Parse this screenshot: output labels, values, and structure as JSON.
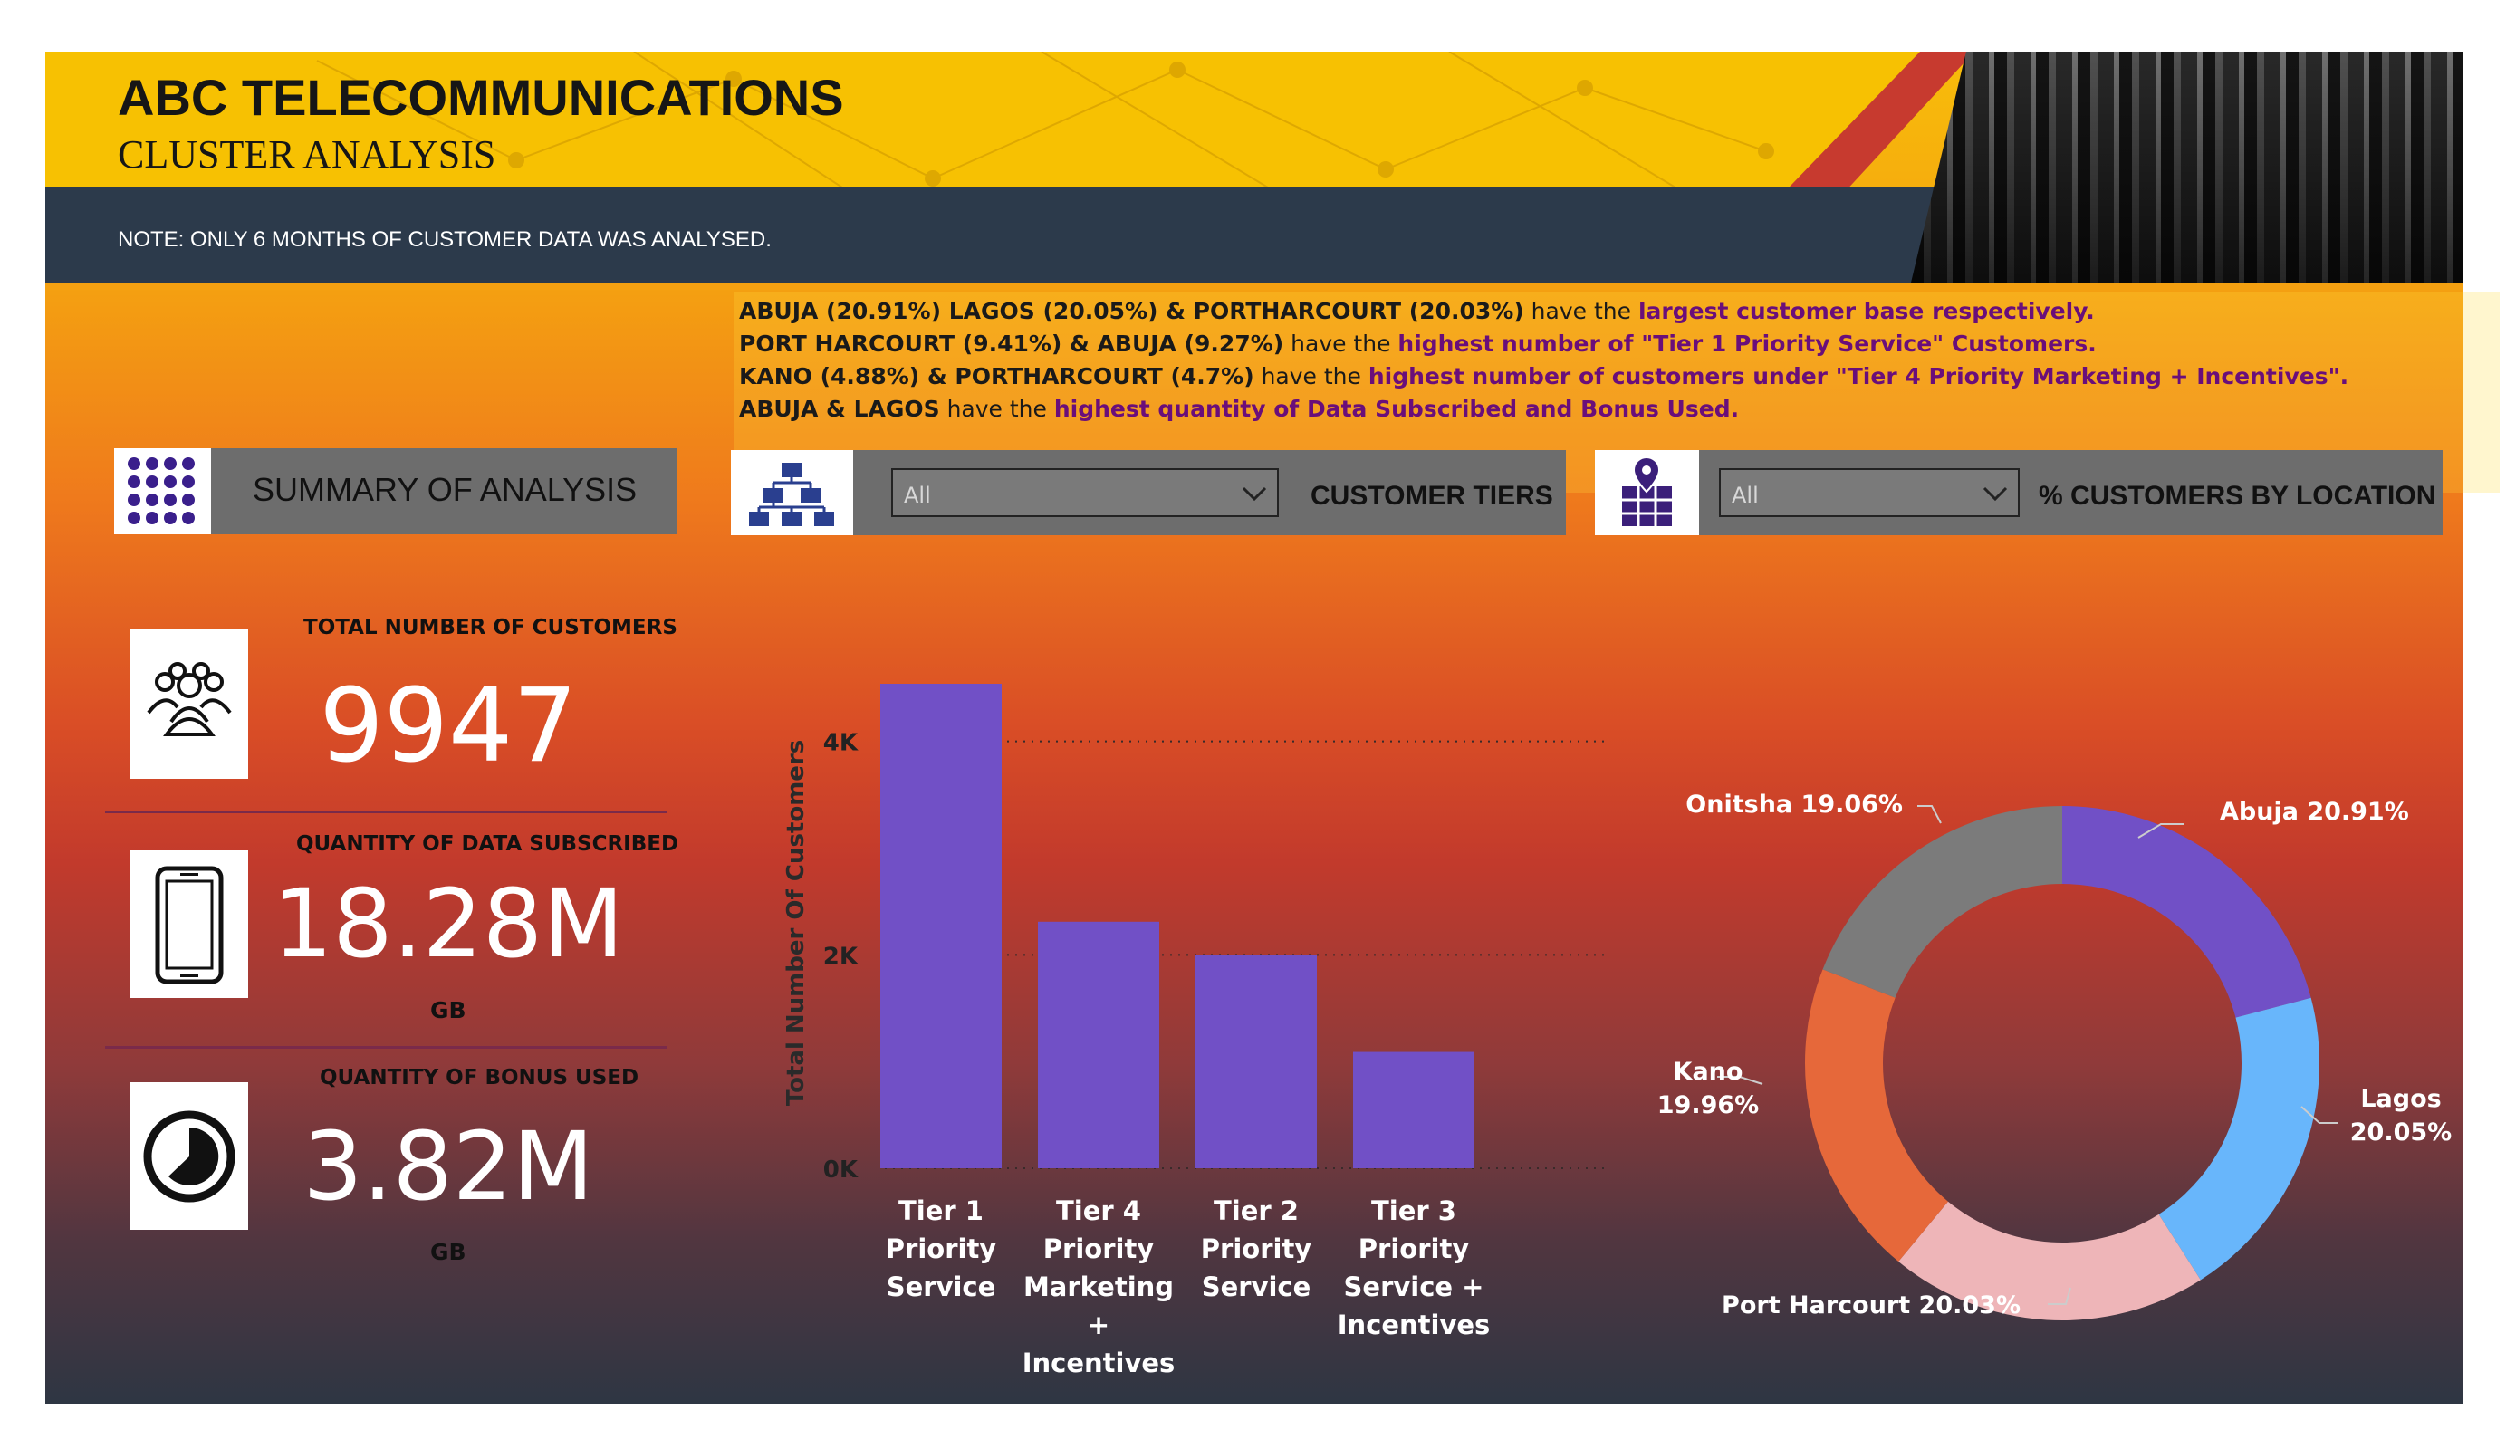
{
  "header": {
    "title": "ABC TELECOMMUNICATIONS",
    "subtitle": "CLUSTER ANALYSIS",
    "note": "NOTE: ONLY 6 MONTHS OF CUSTOMER DATA WAS ANALYSED."
  },
  "insights": [
    {
      "parts": [
        {
          "t": "ABUJA (20.91%) LAGOS (20.05%) & PORTHARCOURT (20.03%)",
          "s": "b"
        },
        {
          "t": " have the ",
          "s": "n"
        },
        {
          "t": "largest customer base respectively.",
          "s": "p"
        }
      ]
    },
    {
      "parts": [
        {
          "t": "PORT HARCOURT (9.41%) & ABUJA (9.27%)",
          "s": "b"
        },
        {
          "t": " have the ",
          "s": "n"
        },
        {
          "t": "highest number of \"Tier 1 Priority Service\" Customers.",
          "s": "p"
        }
      ]
    },
    {
      "parts": [
        {
          "t": "KANO (4.88%) & PORTHARCOURT (4.7%)",
          "s": "b"
        },
        {
          "t": " have the ",
          "s": "n"
        },
        {
          "t": "highest number of customers under \"Tier 4 Priority Marketing + Incentives\".",
          "s": "p"
        }
      ]
    },
    {
      "parts": [
        {
          "t": "ABUJA & LAGOS",
          "s": "b"
        },
        {
          "t": " have the ",
          "s": "n"
        },
        {
          "t": "highest quantity of Data Subscribed and Bonus Used.",
          "s": "p"
        }
      ]
    }
  ],
  "summary": {
    "label": "SUMMARY OF ANALYSIS",
    "icon": "grid-dots-icon",
    "kpis": [
      {
        "label": "TOTAL NUMBER OF CUSTOMERS",
        "value": "9947",
        "unit": "",
        "icon": "users-group-icon"
      },
      {
        "label": "QUANTITY OF DATA SUBSCRIBED",
        "value": "18.28M",
        "unit": "GB",
        "icon": "smartphone-icon"
      },
      {
        "label": "QUANTITY OF BONUS USED",
        "value": "3.82M",
        "unit": "GB",
        "icon": "pie-timer-icon"
      }
    ]
  },
  "tiers_panel": {
    "label": "CUSTOMER TIERS",
    "dropdown_value": "All",
    "icon": "hierarchy-icon"
  },
  "location_panel": {
    "label": "% CUSTOMERS BY LOCATION",
    "dropdown_value": "All",
    "icon": "map-pin-grid-icon"
  },
  "colors": {
    "bar": "#7150c6",
    "abuja": "#7150c6",
    "lagos": "#68b6fb",
    "port_harcourt": "#eeb5b8",
    "kano": "#e6683a",
    "onitsha": "#7b7b7b"
  },
  "chart_data": [
    {
      "type": "bar",
      "categories": [
        [
          "Tier 1",
          "Priority",
          "Service"
        ],
        [
          "Tier 4",
          "Priority",
          "Marketing",
          "+",
          "Incentives"
        ],
        [
          "Tier 2",
          "Priority",
          "Service"
        ],
        [
          "Tier 3",
          "Priority",
          "Service +",
          "Incentives"
        ]
      ],
      "values": [
        4540,
        2310,
        2000,
        1090
      ],
      "ylabel": "Total Number Of Customers",
      "ylim": [
        0,
        4800
      ],
      "yticks": [
        0,
        2000,
        4000
      ],
      "ytick_labels": [
        "0K",
        "2K",
        "4K"
      ],
      "grid": true
    },
    {
      "type": "pie",
      "donut": true,
      "slices": [
        {
          "name": "Abuja",
          "label": "Abuja 20.91%",
          "value": 20.91,
          "color": "#7150c6"
        },
        {
          "name": "Lagos",
          "label": "Lagos 20.05%",
          "value": 20.05,
          "color": "#68b6fb"
        },
        {
          "name": "Port Harcourt",
          "label": "Port Harcourt 20.03%",
          "value": 20.03,
          "color": "#eeb5b8"
        },
        {
          "name": "Kano",
          "label": "Kano 19.96%",
          "value": 19.96,
          "color": "#e6683a"
        },
        {
          "name": "Onitsha",
          "label": "Onitsha 19.06%",
          "value": 19.06,
          "color": "#7b7b7b"
        }
      ]
    }
  ]
}
